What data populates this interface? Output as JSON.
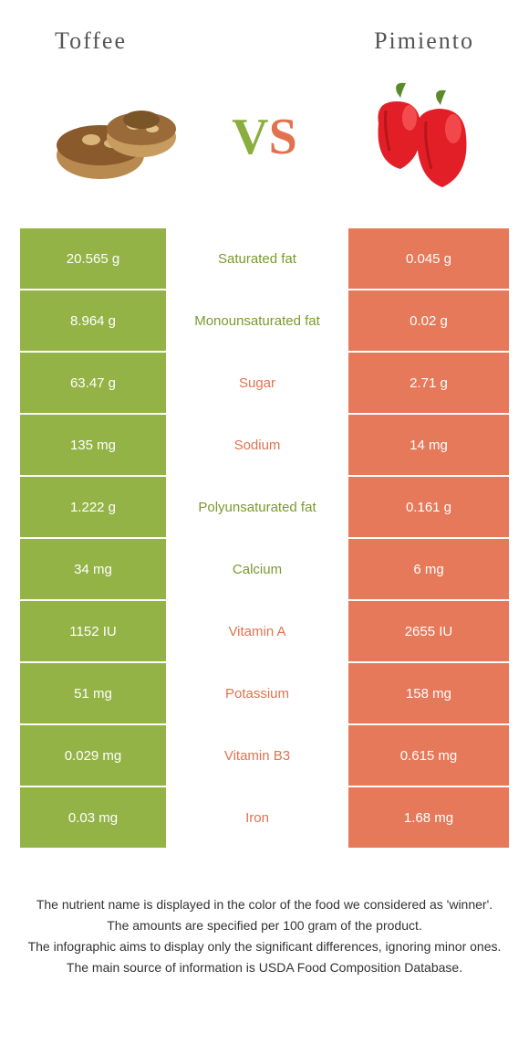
{
  "colors": {
    "left": "#94b347",
    "right": "#e5795a",
    "left_text": "#7a9a2e",
    "right_text": "#e2724f"
  },
  "header": {
    "left_title": "Toffee",
    "right_title": "Pimiento"
  },
  "vs": {
    "v": "V",
    "s": "S"
  },
  "rows": [
    {
      "left": "20.565 g",
      "label": "Saturated fat",
      "right": "0.045 g",
      "winner": "left"
    },
    {
      "left": "8.964 g",
      "label": "Monounsaturated fat",
      "right": "0.02 g",
      "winner": "left"
    },
    {
      "left": "63.47 g",
      "label": "Sugar",
      "right": "2.71 g",
      "winner": "right"
    },
    {
      "left": "135 mg",
      "label": "Sodium",
      "right": "14 mg",
      "winner": "right"
    },
    {
      "left": "1.222 g",
      "label": "Polyunsaturated fat",
      "right": "0.161 g",
      "winner": "left"
    },
    {
      "left": "34 mg",
      "label": "Calcium",
      "right": "6 mg",
      "winner": "left"
    },
    {
      "left": "1152 IU",
      "label": "Vitamin A",
      "right": "2655 IU",
      "winner": "right"
    },
    {
      "left": "51 mg",
      "label": "Potassium",
      "right": "158 mg",
      "winner": "right"
    },
    {
      "left": "0.029 mg",
      "label": "Vitamin B3",
      "right": "0.615 mg",
      "winner": "right"
    },
    {
      "left": "0.03 mg",
      "label": "Iron",
      "right": "1.68 mg",
      "winner": "right"
    }
  ],
  "footer": {
    "line1": "The nutrient name is displayed in the color of the food we considered as 'winner'.",
    "line2": "The amounts are specified per 100 gram of the product.",
    "line3": "The infographic aims to display only the significant differences, ignoring minor ones.",
    "line4": "The main source of information is USDA Food Composition Database."
  }
}
